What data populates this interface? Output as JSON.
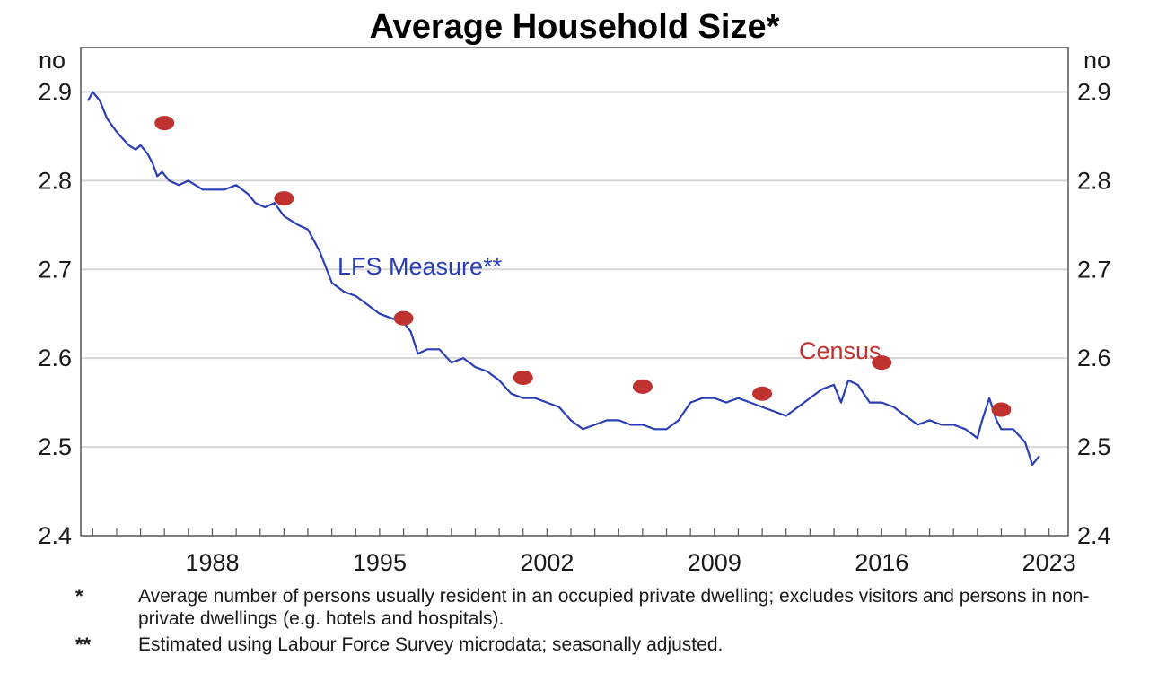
{
  "chart_data": {
    "type": "line",
    "title": "Average Household Size*",
    "y_unit_left": "no",
    "y_unit_right": "no",
    "ylim": [
      2.4,
      2.95
    ],
    "xlim": [
      1982.5,
      2023.8
    ],
    "y_ticks": [
      "2.4",
      "2.5",
      "2.6",
      "2.7",
      "2.8",
      "2.9"
    ],
    "y_tick_values": [
      2.4,
      2.5,
      2.6,
      2.7,
      2.8,
      2.9
    ],
    "x_ticks": [
      "1988",
      "1995",
      "2002",
      "2009",
      "2016",
      "2023"
    ],
    "x_tick_values": [
      1988,
      1995,
      2002,
      2009,
      2016,
      2023
    ],
    "grid": true,
    "series": [
      {
        "name": "LFS Measure**",
        "color": "#2a3fb5",
        "style": "line",
        "x": [
          1982.8,
          1983.0,
          1983.3,
          1983.6,
          1984.0,
          1984.5,
          1984.8,
          1985.0,
          1985.3,
          1985.5,
          1985.7,
          1985.9,
          1986.2,
          1986.6,
          1987.0,
          1987.3,
          1987.6,
          1988.0,
          1988.5,
          1989.0,
          1989.5,
          1989.8,
          1990.2,
          1990.6,
          1991.0,
          1991.3,
          1991.6,
          1992.0,
          1992.2,
          1992.5,
          1993.0,
          1993.5,
          1994.0,
          1994.5,
          1995.0,
          1995.5,
          1996.0,
          1996.3,
          1996.6,
          1997.0,
          1997.5,
          1998.0,
          1998.5,
          1999.0,
          1999.5,
          2000.0,
          2000.5,
          2001.0,
          2001.5,
          2002.0,
          2002.5,
          2003.0,
          2003.5,
          2004.0,
          2004.5,
          2005.0,
          2005.5,
          2006.0,
          2006.5,
          2007.0,
          2007.5,
          2008.0,
          2008.5,
          2009.0,
          2009.5,
          2010.0,
          2010.5,
          2011.0,
          2011.5,
          2012.0,
          2012.5,
          2013.0,
          2013.5,
          2014.0,
          2014.3,
          2014.6,
          2015.0,
          2015.5,
          2016.0,
          2016.5,
          2017.0,
          2017.5,
          2018.0,
          2018.5,
          2019.0,
          2019.5,
          2020.0,
          2020.2,
          2020.5,
          2020.8,
          2021.0,
          2021.5,
          2022.0,
          2022.3,
          2022.6
        ],
        "y": [
          2.89,
          2.9,
          2.89,
          2.87,
          2.855,
          2.84,
          2.835,
          2.84,
          2.83,
          2.82,
          2.805,
          2.81,
          2.8,
          2.795,
          2.8,
          2.795,
          2.79,
          2.79,
          2.79,
          2.795,
          2.785,
          2.775,
          2.77,
          2.775,
          2.76,
          2.755,
          2.75,
          2.745,
          2.735,
          2.72,
          2.685,
          2.675,
          2.67,
          2.66,
          2.65,
          2.645,
          2.64,
          2.63,
          2.605,
          2.61,
          2.61,
          2.595,
          2.6,
          2.59,
          2.585,
          2.575,
          2.56,
          2.555,
          2.555,
          2.55,
          2.545,
          2.53,
          2.52,
          2.525,
          2.53,
          2.53,
          2.525,
          2.525,
          2.52,
          2.52,
          2.53,
          2.55,
          2.555,
          2.555,
          2.55,
          2.555,
          2.55,
          2.545,
          2.54,
          2.535,
          2.545,
          2.555,
          2.565,
          2.57,
          2.55,
          2.575,
          2.57,
          2.55,
          2.55,
          2.545,
          2.535,
          2.525,
          2.53,
          2.525,
          2.525,
          2.52,
          2.51,
          2.53,
          2.555,
          2.53,
          2.52,
          2.52,
          2.505,
          2.48,
          2.49
        ]
      },
      {
        "name": "Census",
        "color": "#c0322f",
        "style": "points",
        "x": [
          1986,
          1991,
          1996,
          2001,
          2006,
          2011,
          2016,
          2021
        ],
        "y": [
          2.865,
          2.78,
          2.645,
          2.578,
          2.568,
          2.56,
          2.595,
          2.542
        ]
      }
    ],
    "notes": [
      {
        "marker": "*",
        "text": "Average number of persons usually resident in an occupied private dwelling; excludes visitors and persons in non-private dwellings (e.g. hotels and hospitals)."
      },
      {
        "marker": "**",
        "text": "Estimated using Labour Force Survey microdata; seasonally adjusted."
      }
    ]
  }
}
